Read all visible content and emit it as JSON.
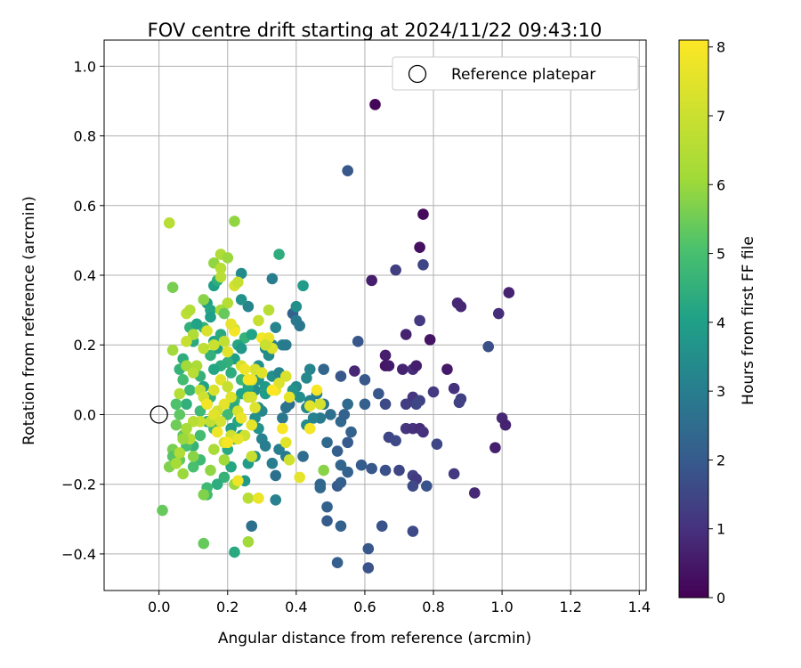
{
  "chart_data": {
    "type": "scatter",
    "title": "FOV centre drift starting at 2024/11/22 09:43:10",
    "xlabel": "Angular distance from reference (arcmin)",
    "ylabel": "Rotation from reference (arcmin)",
    "xlim": [
      -0.16,
      1.42
    ],
    "ylim": [
      -0.505,
      1.075
    ],
    "x_ticks": [
      0.0,
      0.2,
      0.4,
      0.6,
      0.8,
      1.0,
      1.2,
      1.4
    ],
    "x_tick_labels": [
      "0.0",
      "0.2",
      "0.4",
      "0.6",
      "0.8",
      "1.0",
      "1.2",
      "1.4"
    ],
    "y_ticks": [
      -0.4,
      -0.2,
      0.0,
      0.2,
      0.4,
      0.6,
      0.8,
      1.0
    ],
    "y_tick_labels": [
      "−0.4",
      "−0.2",
      "0.0",
      "0.2",
      "0.4",
      "0.6",
      "0.8",
      "1.0"
    ],
    "grid": true,
    "colormap": "viridis",
    "colorbar": {
      "label": "Hours from first FF file",
      "min": 0,
      "max": 8.1,
      "ticks": [
        0,
        1,
        2,
        3,
        4,
        5,
        6,
        7,
        8
      ],
      "tick_labels": [
        "0",
        "1",
        "2",
        "3",
        "4",
        "5",
        "6",
        "7",
        "8"
      ]
    },
    "legend": {
      "placement": "top-right",
      "entries": [
        {
          "label": "Reference platepar",
          "marker": "open-circle"
        }
      ]
    },
    "reference_point": {
      "x": 0.0,
      "y": 0.0
    },
    "points": [
      [
        0.63,
        0.89,
        0.1
      ],
      [
        0.77,
        0.575,
        0.2
      ],
      [
        0.76,
        0.48,
        0.3
      ],
      [
        0.55,
        0.7,
        1.9
      ],
      [
        0.77,
        0.43,
        1.5
      ],
      [
        0.69,
        0.415,
        1.3
      ],
      [
        0.62,
        0.385,
        0.6
      ],
      [
        1.02,
        0.35,
        0.7
      ],
      [
        0.87,
        0.32,
        0.8
      ],
      [
        0.88,
        0.31,
        0.8
      ],
      [
        0.99,
        0.29,
        0.9
      ],
      [
        0.76,
        0.27,
        1.2
      ],
      [
        0.72,
        0.23,
        0.7
      ],
      [
        0.79,
        0.215,
        0.4
      ],
      [
        0.96,
        0.195,
        1.7
      ],
      [
        0.58,
        0.21,
        1.9
      ],
      [
        0.66,
        0.17,
        0.6
      ],
      [
        0.84,
        0.13,
        0.5
      ],
      [
        0.66,
        0.14,
        0.4
      ],
      [
        0.67,
        0.14,
        0.5
      ],
      [
        0.71,
        0.13,
        0.7
      ],
      [
        0.74,
        0.13,
        0.9
      ],
      [
        0.75,
        0.14,
        0.6
      ],
      [
        0.57,
        0.125,
        0.8
      ],
      [
        0.6,
        0.1,
        1.9
      ],
      [
        0.86,
        0.075,
        1.0
      ],
      [
        0.8,
        0.065,
        1.2
      ],
      [
        0.64,
        0.06,
        1.9
      ],
      [
        0.74,
        0.05,
        1.1
      ],
      [
        0.76,
        0.04,
        1.4
      ],
      [
        0.75,
        0.03,
        1.5
      ],
      [
        0.72,
        0.03,
        1.3
      ],
      [
        0.66,
        0.03,
        1.6
      ],
      [
        0.88,
        0.045,
        1.3
      ],
      [
        0.875,
        0.035,
        1.4
      ],
      [
        1.0,
        -0.01,
        0.8
      ],
      [
        1.01,
        -0.03,
        0.7
      ],
      [
        0.72,
        -0.04,
        1.1
      ],
      [
        0.74,
        -0.04,
        1.0
      ],
      [
        0.76,
        -0.04,
        0.9
      ],
      [
        0.77,
        -0.05,
        1.0
      ],
      [
        0.67,
        -0.065,
        1.5
      ],
      [
        0.69,
        -0.075,
        1.6
      ],
      [
        0.81,
        -0.085,
        1.5
      ],
      [
        0.98,
        -0.095,
        0.6
      ],
      [
        0.62,
        -0.155,
        1.9
      ],
      [
        0.66,
        -0.16,
        1.7
      ],
      [
        0.7,
        -0.16,
        1.5
      ],
      [
        0.74,
        -0.175,
        1.4
      ],
      [
        0.75,
        -0.185,
        1.2
      ],
      [
        0.74,
        -0.205,
        1.6
      ],
      [
        0.78,
        -0.205,
        1.8
      ],
      [
        0.86,
        -0.17,
        1.2
      ],
      [
        0.92,
        -0.225,
        0.8
      ],
      [
        0.59,
        -0.145,
        2.0
      ],
      [
        0.65,
        -0.32,
        1.8
      ],
      [
        0.74,
        -0.335,
        1.6
      ],
      [
        0.61,
        -0.385,
        1.9
      ],
      [
        0.61,
        -0.44,
        1.8
      ],
      [
        0.52,
        -0.425,
        2.1
      ],
      [
        0.53,
        -0.32,
        2.2
      ],
      [
        0.49,
        -0.305,
        2.0
      ],
      [
        0.49,
        -0.265,
        2.2
      ],
      [
        0.47,
        -0.2,
        2.3
      ],
      [
        0.47,
        -0.21,
        2.4
      ],
      [
        0.52,
        -0.205,
        2.0
      ],
      [
        0.53,
        -0.195,
        2.1
      ],
      [
        0.55,
        -0.165,
        2.2
      ],
      [
        0.53,
        -0.145,
        2.3
      ],
      [
        0.52,
        -0.105,
        2.1
      ],
      [
        0.55,
        -0.08,
        2.0
      ],
      [
        0.56,
        -0.05,
        2.2
      ],
      [
        0.53,
        -0.02,
        2.4
      ],
      [
        0.55,
        0.03,
        2.5
      ],
      [
        0.6,
        0.03,
        2.1
      ],
      [
        0.53,
        0.11,
        1.9
      ],
      [
        0.48,
        0.13,
        2.3
      ],
      [
        0.49,
        -0.08,
        2.4
      ],
      [
        0.54,
        0.0,
        2.2
      ],
      [
        0.5,
        0.0,
        2.6
      ],
      [
        0.48,
        0.03,
        2.8
      ],
      [
        0.47,
        -0.01,
        2.9
      ],
      [
        0.46,
        0.06,
        3.0
      ],
      [
        0.45,
        -0.01,
        3.1
      ],
      [
        0.44,
        0.04,
        3.2
      ],
      [
        0.43,
        0.02,
        3.3
      ],
      [
        0.43,
        -0.03,
        3.4
      ],
      [
        0.42,
        -0.12,
        2.5
      ],
      [
        0.39,
        0.29,
        2.2
      ],
      [
        0.4,
        0.27,
        2.9
      ],
      [
        0.41,
        0.255,
        2.8
      ],
      [
        0.4,
        0.31,
        3.5
      ],
      [
        0.42,
        0.37,
        3.9
      ],
      [
        0.44,
        0.13,
        3.2
      ],
      [
        0.43,
        0.105,
        3.3
      ],
      [
        0.4,
        0.08,
        3.4
      ],
      [
        0.41,
        0.05,
        3.5
      ],
      [
        0.39,
        0.07,
        3.6
      ],
      [
        0.38,
        0.03,
        2.5
      ],
      [
        0.37,
        0.02,
        2.7
      ],
      [
        0.36,
        -0.01,
        2.8
      ],
      [
        0.35,
        -0.1,
        3.0
      ],
      [
        0.37,
        -0.12,
        2.9
      ],
      [
        0.33,
        -0.14,
        3.0
      ],
      [
        0.34,
        -0.175,
        2.6
      ],
      [
        0.34,
        -0.245,
        3.1
      ],
      [
        0.33,
        0.39,
        3.0
      ],
      [
        0.35,
        0.46,
        4.4
      ],
      [
        0.34,
        0.25,
        3.2
      ],
      [
        0.36,
        0.2,
        3.1
      ],
      [
        0.33,
        0.2,
        3.2
      ],
      [
        0.31,
        0.19,
        3.3
      ],
      [
        0.32,
        0.17,
        3.4
      ],
      [
        0.33,
        0.11,
        3.5
      ],
      [
        0.35,
        0.12,
        3.2
      ],
      [
        0.37,
        0.2,
        2.9
      ],
      [
        0.29,
        0.14,
        3.6
      ],
      [
        0.29,
        0.1,
        3.7
      ],
      [
        0.31,
        0.08,
        3.8
      ],
      [
        0.31,
        0.06,
        3.9
      ],
      [
        0.28,
        0.07,
        3.5
      ],
      [
        0.29,
        0.02,
        3.4
      ],
      [
        0.3,
        0.01,
        3.3
      ],
      [
        0.28,
        -0.01,
        3.5
      ],
      [
        0.29,
        -0.04,
        3.6
      ],
      [
        0.3,
        -0.07,
        3.1
      ],
      [
        0.31,
        -0.09,
        3.0
      ],
      [
        0.28,
        -0.12,
        3.6
      ],
      [
        0.26,
        -0.14,
        3.9
      ],
      [
        0.25,
        -0.19,
        3.8
      ],
      [
        0.27,
        -0.32,
        2.6
      ],
      [
        0.22,
        -0.395,
        4.3
      ],
      [
        0.26,
        0.31,
        3.2
      ],
      [
        0.24,
        0.33,
        3.6
      ],
      [
        0.24,
        0.405,
        3.4
      ],
      [
        0.22,
        0.555,
        5.9
      ],
      [
        0.25,
        0.22,
        4.6
      ],
      [
        0.27,
        0.23,
        4.1
      ],
      [
        0.23,
        0.2,
        4.2
      ],
      [
        0.24,
        0.19,
        3.8
      ],
      [
        0.22,
        0.16,
        4.0
      ],
      [
        0.2,
        0.15,
        4.5
      ],
      [
        0.21,
        0.12,
        4.4
      ],
      [
        0.24,
        0.1,
        4.7
      ],
      [
        0.26,
        0.08,
        4.2
      ],
      [
        0.24,
        0.06,
        4.1
      ],
      [
        0.22,
        0.04,
        4.6
      ],
      [
        0.22,
        0.02,
        4.3
      ],
      [
        0.2,
        0.0,
        4.8
      ],
      [
        0.23,
        -0.02,
        4.2
      ],
      [
        0.21,
        -0.04,
        3.9
      ],
      [
        0.24,
        -0.06,
        4.0
      ],
      [
        0.22,
        -0.07,
        4.5
      ],
      [
        0.2,
        -0.1,
        4.3
      ],
      [
        0.21,
        -0.15,
        4.2
      ],
      [
        0.19,
        -0.18,
        4.6
      ],
      [
        0.17,
        -0.2,
        4.4
      ],
      [
        0.14,
        -0.21,
        4.8
      ],
      [
        0.14,
        -0.23,
        4.9
      ],
      [
        0.13,
        -0.37,
        5.4
      ],
      [
        0.16,
        0.37,
        4.0
      ],
      [
        0.17,
        0.385,
        4.4
      ],
      [
        0.14,
        0.32,
        3.9
      ],
      [
        0.15,
        0.3,
        4.2
      ],
      [
        0.15,
        0.28,
        4.0
      ],
      [
        0.13,
        0.25,
        4.6
      ],
      [
        0.16,
        0.21,
        4.1
      ],
      [
        0.18,
        0.23,
        4.3
      ],
      [
        0.17,
        0.19,
        4.0
      ],
      [
        0.15,
        0.17,
        4.5
      ],
      [
        0.18,
        0.14,
        4.4
      ],
      [
        0.16,
        0.13,
        4.2
      ],
      [
        0.12,
        0.11,
        4.6
      ],
      [
        0.13,
        0.08,
        4.1
      ],
      [
        0.15,
        0.05,
        4.5
      ],
      [
        0.14,
        0.03,
        4.3
      ],
      [
        0.12,
        0.01,
        4.8
      ],
      [
        0.14,
        -0.02,
        4.4
      ],
      [
        0.16,
        -0.04,
        4.7
      ],
      [
        0.12,
        -0.06,
        4.9
      ],
      [
        0.1,
        -0.09,
        4.6
      ],
      [
        0.12,
        -0.13,
        4.8
      ],
      [
        0.1,
        -0.15,
        5.0
      ],
      [
        0.08,
        0.03,
        4.5
      ],
      [
        0.09,
        0.07,
        4.7
      ],
      [
        0.07,
        0.1,
        4.9
      ],
      [
        0.06,
        0.13,
        4.6
      ],
      [
        0.07,
        0.16,
        4.4
      ],
      [
        0.1,
        0.21,
        4.3
      ],
      [
        0.09,
        0.25,
        4.5
      ],
      [
        0.11,
        0.26,
        4.1
      ],
      [
        0.05,
        0.03,
        5.1
      ],
      [
        0.06,
        0.0,
        5.3
      ],
      [
        0.05,
        -0.03,
        5.5
      ],
      [
        0.04,
        -0.1,
        5.6
      ],
      [
        0.06,
        -0.13,
        5.4
      ],
      [
        0.03,
        -0.15,
        5.7
      ],
      [
        0.04,
        -0.12,
        5.2
      ],
      [
        0.08,
        -0.09,
        5.0
      ],
      [
        0.07,
        -0.06,
        5.3
      ],
      [
        0.01,
        -0.275,
        5.4
      ],
      [
        0.04,
        0.365,
        5.6
      ],
      [
        0.04,
        0.185,
        6.1
      ],
      [
        0.06,
        0.06,
        6.5
      ],
      [
        0.03,
        0.55,
        6.6
      ],
      [
        0.16,
        0.435,
        5.9
      ],
      [
        0.18,
        0.46,
        6.4
      ],
      [
        0.2,
        0.45,
        6.0
      ],
      [
        0.18,
        0.395,
        6.6
      ],
      [
        0.2,
        0.32,
        6.5
      ],
      [
        0.18,
        0.3,
        6.2
      ],
      [
        0.13,
        0.33,
        5.8
      ],
      [
        0.19,
        0.29,
        5.4
      ],
      [
        0.22,
        0.37,
        7.2
      ],
      [
        0.23,
        0.38,
        6.9
      ],
      [
        0.22,
        0.245,
        6.3
      ],
      [
        0.19,
        0.21,
        6.8
      ],
      [
        0.16,
        0.2,
        7.0
      ],
      [
        0.14,
        0.24,
        7.3
      ],
      [
        0.13,
        0.19,
        6.7
      ],
      [
        0.1,
        0.23,
        6.4
      ],
      [
        0.08,
        0.21,
        6.9
      ],
      [
        0.08,
        0.29,
        6.7
      ],
      [
        0.09,
        0.3,
        6.5
      ],
      [
        0.11,
        0.14,
        6.3
      ],
      [
        0.08,
        0.14,
        6.1
      ],
      [
        0.1,
        0.12,
        6.6
      ],
      [
        0.12,
        0.07,
        6.8
      ],
      [
        0.13,
        0.05,
        7.1
      ],
      [
        0.16,
        0.07,
        7.3
      ],
      [
        0.18,
        0.1,
        7.5
      ],
      [
        0.2,
        0.08,
        6.9
      ],
      [
        0.21,
        0.05,
        7.4
      ],
      [
        0.19,
        0.03,
        7.6
      ],
      [
        0.17,
        0.01,
        7.2
      ],
      [
        0.15,
        -0.02,
        6.8
      ],
      [
        0.12,
        -0.02,
        7.0
      ],
      [
        0.1,
        -0.02,
        6.6
      ],
      [
        0.08,
        -0.04,
        6.2
      ],
      [
        0.09,
        -0.07,
        6.5
      ],
      [
        0.07,
        -0.07,
        6.0
      ],
      [
        0.06,
        -0.11,
        6.4
      ],
      [
        0.05,
        -0.14,
        6.2
      ],
      [
        0.07,
        -0.17,
        6.0
      ],
      [
        0.1,
        -0.12,
        5.8
      ],
      [
        0.15,
        -0.16,
        5.9
      ],
      [
        0.16,
        -0.1,
        6.3
      ],
      [
        0.19,
        -0.13,
        6.1
      ],
      [
        0.13,
        -0.23,
        5.7
      ],
      [
        0.22,
        -0.2,
        6.0
      ],
      [
        0.26,
        -0.24,
        6.6
      ],
      [
        0.26,
        -0.365,
        6.1
      ],
      [
        0.29,
        -0.24,
        7.7
      ],
      [
        0.27,
        -0.12,
        6.9
      ],
      [
        0.25,
        -0.06,
        7.1
      ],
      [
        0.27,
        -0.03,
        7.6
      ],
      [
        0.28,
        0.02,
        7.4
      ],
      [
        0.26,
        0.05,
        7.0
      ],
      [
        0.27,
        0.1,
        7.8
      ],
      [
        0.28,
        0.13,
        7.2
      ],
      [
        0.3,
        0.12,
        7.5
      ],
      [
        0.3,
        0.22,
        7.9
      ],
      [
        0.32,
        0.22,
        7.7
      ],
      [
        0.33,
        0.19,
        7.4
      ],
      [
        0.31,
        0.2,
        7.0
      ],
      [
        0.29,
        0.27,
        6.9
      ],
      [
        0.32,
        0.3,
        6.6
      ],
      [
        0.27,
        0.05,
        7.2
      ],
      [
        0.24,
        0.14,
        7.3
      ],
      [
        0.25,
        0.13,
        7.8
      ],
      [
        0.26,
        0.1,
        8.0
      ],
      [
        0.22,
        0.24,
        7.9
      ],
      [
        0.21,
        0.26,
        7.6
      ],
      [
        0.2,
        0.18,
        7.5
      ],
      [
        0.23,
        0.01,
        7.3
      ],
      [
        0.24,
        -0.01,
        7.7
      ],
      [
        0.21,
        -0.06,
        7.1
      ],
      [
        0.19,
        -0.08,
        7.4
      ],
      [
        0.17,
        -0.05,
        7.8
      ],
      [
        0.14,
        0.03,
        7.9
      ],
      [
        0.16,
        0.0,
        7.5
      ],
      [
        0.18,
        -0.02,
        7.2
      ],
      [
        0.2,
        -0.08,
        8.0
      ],
      [
        0.23,
        -0.07,
        7.6
      ],
      [
        0.23,
        -0.19,
        7.8
      ],
      [
        0.34,
        0.07,
        7.8
      ],
      [
        0.35,
        0.09,
        7.4
      ],
      [
        0.37,
        0.11,
        7.3
      ],
      [
        0.38,
        0.05,
        7.6
      ],
      [
        0.36,
        -0.04,
        8.0
      ],
      [
        0.37,
        -0.08,
        7.5
      ],
      [
        0.38,
        -0.13,
        7.1
      ],
      [
        0.41,
        -0.18,
        7.6
      ],
      [
        0.44,
        -0.04,
        7.9
      ],
      [
        0.46,
        0.07,
        8.0
      ],
      [
        0.47,
        0.03,
        7.2
      ],
      [
        0.48,
        -0.16,
        5.8
      ],
      [
        0.44,
        0.025,
        7.5
      ],
      [
        0.33,
        0.07,
        8.1
      ],
      [
        0.18,
        0.42,
        6.6
      ]
    ]
  }
}
